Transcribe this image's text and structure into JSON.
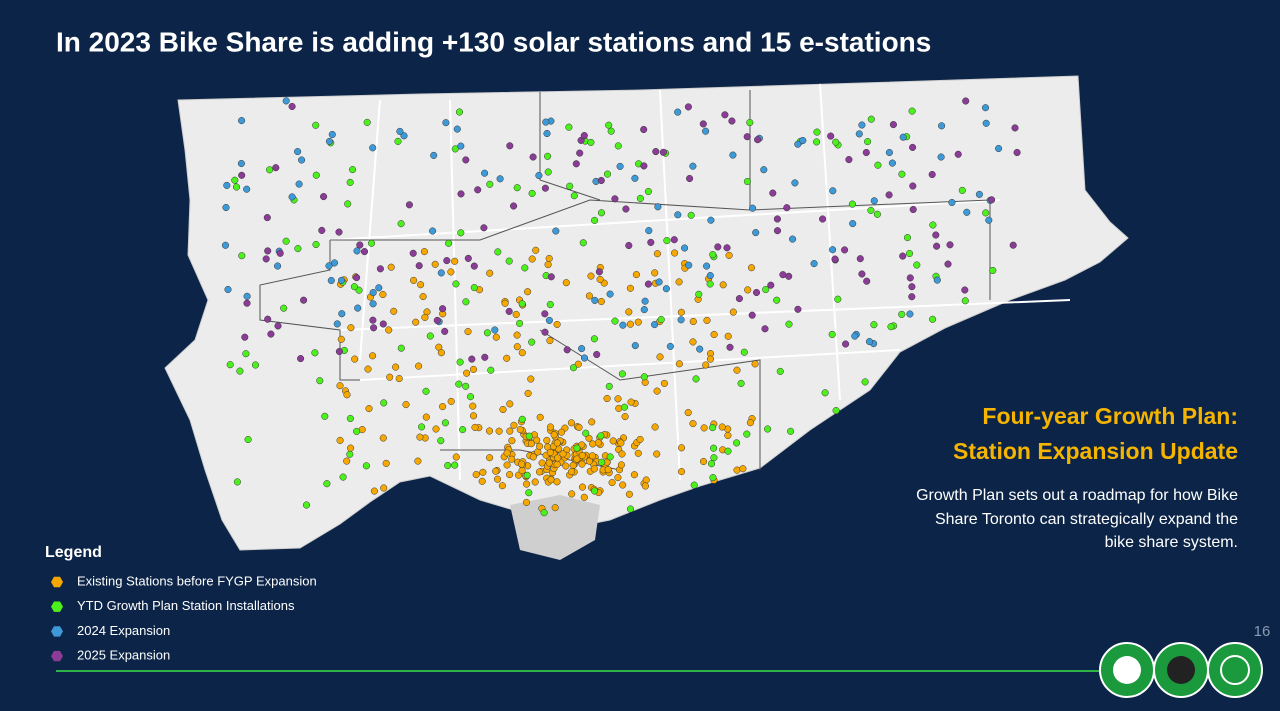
{
  "slide": {
    "title": "In 2023 Bike Share is adding +130 solar stations and 15 e-stations",
    "heading": [
      "Four-year Growth Plan:",
      "Station Expansion Update"
    ],
    "body": [
      "Growth Plan sets out a roadmap for how Bike",
      "Share Toronto can  strategically expand the",
      "bike share system."
    ],
    "page_number": 16,
    "legend": {
      "title": "Legend",
      "items": [
        {
          "label": "Existing Stations before FYGP Expansion",
          "color": "#f7a800"
        },
        {
          "label": "YTD Growth Plan Station Installations",
          "color": "#4cf01c"
        },
        {
          "label": "2024 Expansion",
          "color": "#3d9ad6"
        },
        {
          "label": "2025 Expansion",
          "color": "#8a3c96"
        }
      ]
    }
  }
}
